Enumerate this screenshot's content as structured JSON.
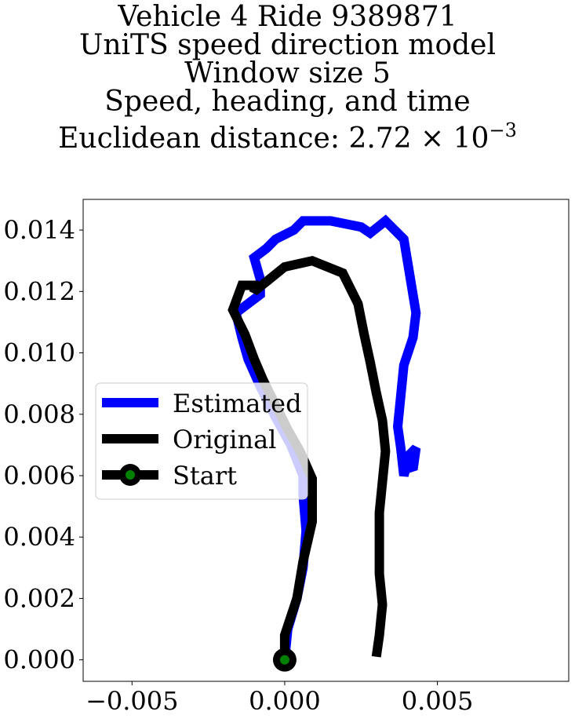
{
  "chart_data": {
    "type": "line",
    "title_lines": [
      "Vehicle 4 Ride 9389871",
      "UniTS speed direction model",
      "Window size 5",
      "Speed, heading, and time"
    ],
    "distance_label": "Euclidean distance: ",
    "distance_mantissa": "2.72",
    "distance_times_base": "× 10",
    "distance_exponent": "−3",
    "xlim": [
      -0.0066,
      0.0093
    ],
    "ylim": [
      -0.0007,
      0.015
    ],
    "xticks": [
      {
        "value": -0.005,
        "label": "−0.005"
      },
      {
        "value": 0.0,
        "label": "0.000"
      },
      {
        "value": 0.005,
        "label": "0.005"
      }
    ],
    "yticks": [
      {
        "value": 0.0,
        "label": "0.000"
      },
      {
        "value": 0.002,
        "label": "0.002"
      },
      {
        "value": 0.004,
        "label": "0.004"
      },
      {
        "value": 0.006,
        "label": "0.006"
      },
      {
        "value": 0.008,
        "label": "0.008"
      },
      {
        "value": 0.01,
        "label": "0.010"
      },
      {
        "value": 0.012,
        "label": "0.012"
      },
      {
        "value": 0.014,
        "label": "0.014"
      }
    ],
    "legend": {
      "placement": "center-left",
      "entries": [
        "Estimated",
        "Original",
        "Start"
      ]
    },
    "series": [
      {
        "name": "Estimated",
        "color": "#0000ff",
        "points": [
          [
            0.0,
            0.0
          ],
          [
            0.0001,
            0.001
          ],
          [
            0.0004,
            0.002
          ],
          [
            0.0006,
            0.003
          ],
          [
            0.0007,
            0.0042
          ],
          [
            0.0006,
            0.0054
          ],
          [
            0.0006,
            0.006
          ],
          [
            0.0002,
            0.007
          ],
          [
            -0.0003,
            0.0079
          ],
          [
            -0.0008,
            0.0089
          ],
          [
            -0.0012,
            0.0098
          ],
          [
            -0.0014,
            0.0105
          ],
          [
            -0.0016,
            0.0113
          ],
          [
            -0.0008,
            0.0119
          ],
          [
            -0.0008,
            0.0124
          ],
          [
            -0.001,
            0.0131
          ],
          [
            -0.0006,
            0.0134
          ],
          [
            -0.0003,
            0.0137
          ],
          [
            0.0003,
            0.014
          ],
          [
            0.0006,
            0.0143
          ],
          [
            0.0015,
            0.0143
          ],
          [
            0.0025,
            0.0141
          ],
          [
            0.0028,
            0.0139
          ],
          [
            0.0033,
            0.0143
          ],
          [
            0.0039,
            0.0137
          ],
          [
            0.0041,
            0.0125
          ],
          [
            0.0043,
            0.0113
          ],
          [
            0.0042,
            0.0105
          ],
          [
            0.0039,
            0.0096
          ],
          [
            0.0038,
            0.0086
          ],
          [
            0.0037,
            0.0076
          ],
          [
            0.0038,
            0.0069
          ],
          [
            0.0039,
            0.006
          ],
          [
            0.0041,
            0.0067
          ],
          [
            0.0043,
            0.0069
          ],
          [
            0.0042,
            0.0062
          ],
          [
            0.004,
            0.0064
          ]
        ]
      },
      {
        "name": "Original",
        "color": "#000000",
        "points": [
          [
            0.0,
            0.0
          ],
          [
            0.0,
            0.0008
          ],
          [
            0.0004,
            0.002
          ],
          [
            0.0006,
            0.0032
          ],
          [
            0.0009,
            0.0045
          ],
          [
            0.0009,
            0.0059
          ],
          [
            0.0005,
            0.0068
          ],
          [
            0.0001,
            0.0075
          ],
          [
            -0.0003,
            0.0083
          ],
          [
            -0.0007,
            0.0091
          ],
          [
            -0.001,
            0.0098
          ],
          [
            -0.0013,
            0.0106
          ],
          [
            -0.0017,
            0.0114
          ],
          [
            -0.0014,
            0.0122
          ],
          [
            -0.001,
            0.0122
          ],
          [
            -0.001,
            0.012
          ],
          [
            -0.0005,
            0.0124
          ],
          [
            0.0,
            0.0128
          ],
          [
            0.0009,
            0.013
          ],
          [
            0.0019,
            0.0126
          ],
          [
            0.0024,
            0.0116
          ],
          [
            0.0026,
            0.0106
          ],
          [
            0.0028,
            0.0097
          ],
          [
            0.003,
            0.0087
          ],
          [
            0.0032,
            0.0078
          ],
          [
            0.0033,
            0.0068
          ],
          [
            0.0032,
            0.0058
          ],
          [
            0.0031,
            0.0048
          ],
          [
            0.0031,
            0.0038
          ],
          [
            0.0031,
            0.0028
          ],
          [
            0.0032,
            0.0018
          ],
          [
            0.0031,
            0.0008
          ],
          [
            0.003,
            0.0001
          ]
        ]
      }
    ],
    "start_point": {
      "x": 0.0,
      "y": 0.0,
      "fill": "#008000",
      "edge": "#000000"
    }
  }
}
